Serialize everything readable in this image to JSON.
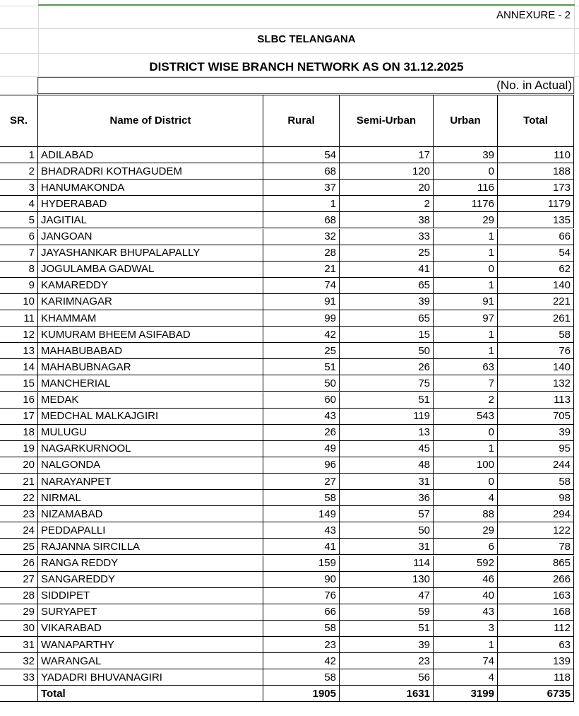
{
  "header": {
    "annexure": "ANNEXURE - 2",
    "organisation": "SLBC TELANGANA",
    "title": "DISTRICT WISE BRANCH NETWORK AS ON 31.12.2025",
    "unit": "(No. in Actual)"
  },
  "table": {
    "columns": [
      "SR.",
      "Name of District",
      "Rural",
      "Semi-Urban",
      "Urban",
      "Total"
    ],
    "rows": [
      [
        1,
        "ADILABAD",
        54,
        17,
        39,
        110
      ],
      [
        2,
        "BHADRADRI KOTHAGUDEM",
        68,
        120,
        0,
        188
      ],
      [
        3,
        "HANUMAKONDA",
        37,
        20,
        116,
        173
      ],
      [
        4,
        "HYDERABAD",
        1,
        2,
        1176,
        1179
      ],
      [
        5,
        "JAGITIAL",
        68,
        38,
        29,
        135
      ],
      [
        6,
        "JANGOAN",
        32,
        33,
        1,
        66
      ],
      [
        7,
        "JAYASHANKAR BHUPALAPALLY",
        28,
        25,
        1,
        54
      ],
      [
        8,
        "JOGULAMBA GADWAL",
        21,
        41,
        0,
        62
      ],
      [
        9,
        "KAMAREDDY",
        74,
        65,
        1,
        140
      ],
      [
        10,
        "KARIMNAGAR",
        91,
        39,
        91,
        221
      ],
      [
        11,
        "KHAMMAM",
        99,
        65,
        97,
        261
      ],
      [
        12,
        "KUMURAM BHEEM ASIFABAD",
        42,
        15,
        1,
        58
      ],
      [
        13,
        "MAHABUBABAD",
        25,
        50,
        1,
        76
      ],
      [
        14,
        "MAHABUBNAGAR",
        51,
        26,
        63,
        140
      ],
      [
        15,
        "MANCHERIAL",
        50,
        75,
        7,
        132
      ],
      [
        16,
        "MEDAK",
        60,
        51,
        2,
        113
      ],
      [
        17,
        "MEDCHAL MALKAJGIRI",
        43,
        119,
        543,
        705
      ],
      [
        18,
        "MULUGU",
        26,
        13,
        0,
        39
      ],
      [
        19,
        "NAGARKURNOOL",
        49,
        45,
        1,
        95
      ],
      [
        20,
        "NALGONDA",
        96,
        48,
        100,
        244
      ],
      [
        21,
        "NARAYANPET",
        27,
        31,
        0,
        58
      ],
      [
        22,
        "NIRMAL",
        58,
        36,
        4,
        98
      ],
      [
        23,
        "NIZAMABAD",
        149,
        57,
        88,
        294
      ],
      [
        24,
        "PEDDAPALLI",
        43,
        50,
        29,
        122
      ],
      [
        25,
        "RAJANNA SIRCILLA",
        41,
        31,
        6,
        78
      ],
      [
        26,
        "RANGA REDDY",
        159,
        114,
        592,
        865
      ],
      [
        27,
        "SANGAREDDY",
        90,
        130,
        46,
        266
      ],
      [
        28,
        "SIDDIPET",
        76,
        47,
        40,
        163
      ],
      [
        29,
        "SURYAPET",
        66,
        59,
        43,
        168
      ],
      [
        30,
        "VIKARABAD",
        58,
        51,
        3,
        112
      ],
      [
        31,
        "WANAPARTHY",
        23,
        39,
        1,
        63
      ],
      [
        32,
        "WARANGAL",
        42,
        23,
        74,
        139
      ],
      [
        33,
        "YADADRI BHUVANAGIRI",
        58,
        56,
        4,
        118
      ]
    ],
    "total": [
      "Total",
      1905,
      1631,
      3199,
      6735
    ]
  }
}
